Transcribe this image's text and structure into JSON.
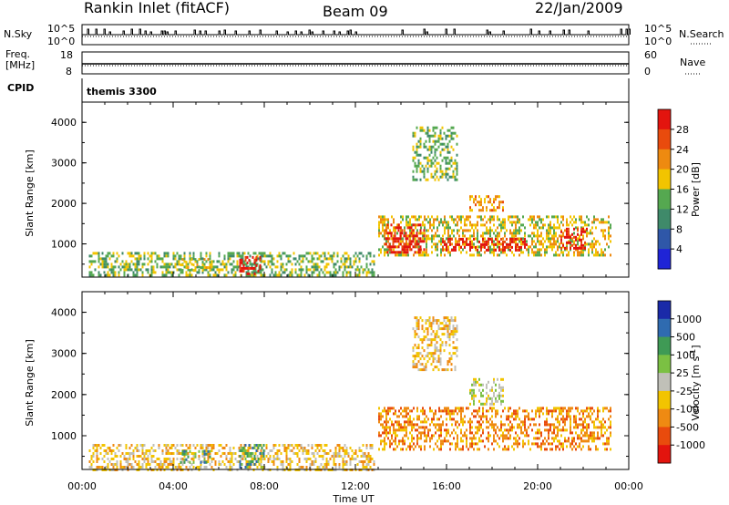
{
  "header": {
    "station": "Rankin Inlet (fitACF)",
    "beam": "Beam 09",
    "date": "22/Jan/2009"
  },
  "top_panels": {
    "nsky_label": "N.Sky",
    "nsky_ticks": [
      "10^5",
      "10^0"
    ],
    "nsearch_label": "N.Search",
    "nsearch_ticks": [
      "10^5",
      "10^0"
    ],
    "freq_label_1": "Freq.",
    "freq_label_2": "[MHz]",
    "freq_ticks": [
      "18",
      "8"
    ],
    "nave_label": "Nave",
    "nave_ticks": [
      "60",
      "0"
    ],
    "cpid_label": "CPID",
    "cpid_value": "themis 3300"
  },
  "chart_data": [
    {
      "type": "heatmap",
      "title": "",
      "xlabel": "Time UT",
      "ylabel": "Slant Range [km]",
      "ylim": [
        180,
        4500
      ],
      "xlim": [
        "00:00",
        "00:00"
      ],
      "x_ticks": [
        "00:00",
        "04:00",
        "08:00",
        "12:00",
        "16:00",
        "20:00",
        "00:00"
      ],
      "y_ticks": [
        1000,
        2000,
        3000,
        4000
      ],
      "colorbar": {
        "label": "Power [dB]",
        "levels": [
          "4",
          "8",
          "12",
          "16",
          "20",
          "24",
          "28"
        ],
        "colors": [
          "#1f24d6",
          "#2f57a8",
          "#3f8a6a",
          "#55a850",
          "#f2c400",
          "#ee8a10",
          "#e94b0d",
          "#e3140e"
        ]
      },
      "regions": [
        {
          "t0": 0.3,
          "t1": 12.8,
          "r0": 200,
          "r1": 800,
          "level": 3
        },
        {
          "t0": 6.9,
          "t1": 7.8,
          "r0": 250,
          "r1": 700,
          "level": 7
        },
        {
          "t0": 4.3,
          "t1": 5.6,
          "r0": 350,
          "r1": 650,
          "level": 4
        },
        {
          "t0": 13.0,
          "t1": 23.2,
          "r0": 700,
          "r1": 1700,
          "level": 4
        },
        {
          "t0": 13.3,
          "t1": 15.0,
          "r0": 800,
          "r1": 1500,
          "level": 7
        },
        {
          "t0": 15.8,
          "t1": 19.5,
          "r0": 850,
          "r1": 1150,
          "level": 7
        },
        {
          "t0": 21.0,
          "t1": 22.2,
          "r0": 900,
          "r1": 1400,
          "level": 7
        },
        {
          "t0": 17.0,
          "t1": 18.5,
          "r0": 1800,
          "r1": 2200,
          "level": 5
        },
        {
          "t0": 14.5,
          "t1": 16.5,
          "r0": 2600,
          "r1": 3900,
          "level": 3
        }
      ]
    },
    {
      "type": "heatmap",
      "title": "",
      "xlabel": "Time UT",
      "ylabel": "Slant Range [km]",
      "ylim": [
        180,
        4500
      ],
      "xlim": [
        "00:00",
        "00:00"
      ],
      "x_ticks": [
        "00:00",
        "04:00",
        "08:00",
        "12:00",
        "16:00",
        "20:00",
        "00:00"
      ],
      "y_ticks": [
        1000,
        2000,
        3000,
        4000
      ],
      "colorbar": {
        "label": "Velocity [m s^-1]",
        "levels": [
          "1000",
          "500",
          "100",
          "25",
          "-25",
          "-100",
          "-500",
          "-1000"
        ],
        "colors": [
          "#1a2aa8",
          "#2f6bb0",
          "#3f9a55",
          "#7bc043",
          "#c0c0b8",
          "#f2c400",
          "#ef8a12",
          "#e94b0d",
          "#e3140e"
        ]
      },
      "regions": [
        {
          "t0": 0.3,
          "t1": 12.8,
          "r0": 200,
          "r1": 800,
          "level": 5
        },
        {
          "t0": 6.9,
          "t1": 8.0,
          "r0": 250,
          "r1": 800,
          "level": 2
        },
        {
          "t0": 4.3,
          "t1": 5.6,
          "r0": 350,
          "r1": 650,
          "level": 2
        },
        {
          "t0": 13.0,
          "t1": 23.2,
          "r0": 650,
          "r1": 1700,
          "level": 6
        },
        {
          "t0": 17.0,
          "t1": 18.5,
          "r0": 1800,
          "r1": 2400,
          "level": 4
        },
        {
          "t0": 14.5,
          "t1": 16.5,
          "r0": 2600,
          "r1": 3900,
          "level": 5
        }
      ]
    }
  ],
  "x_axis_label": "Time UT"
}
